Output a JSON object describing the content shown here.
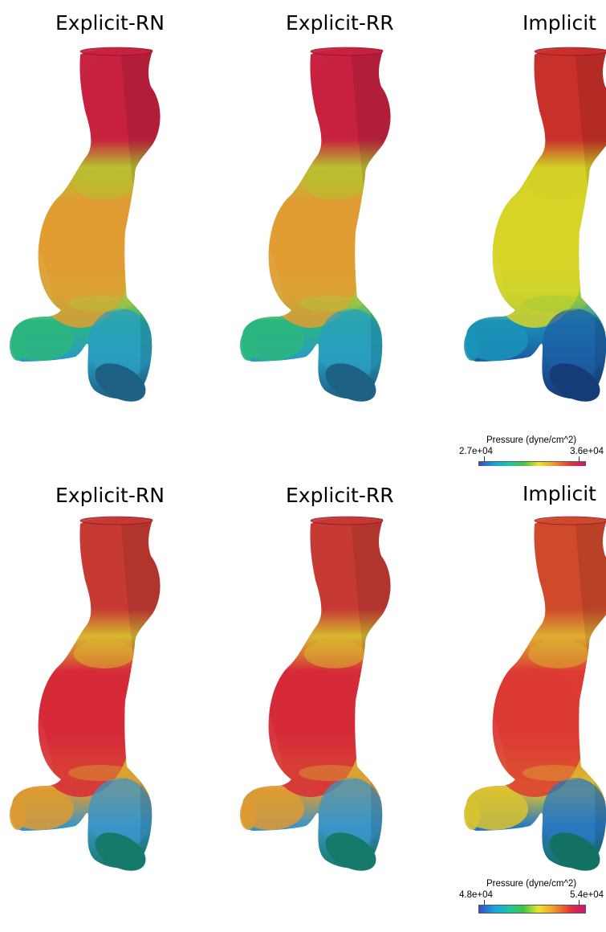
{
  "panels": [
    {
      "titles": [
        "Explicit-RN",
        "Explicit-RR",
        "Implicit"
      ],
      "colorbar": {
        "title": "Pressure (dyne/cm^2)",
        "min": "2.7e+04",
        "max": "3.6e+04"
      },
      "colors": {
        "top": [
          "#c7223f",
          "#c7223f",
          "#c8302a"
        ],
        "neck": [
          "#b8c030",
          "#b8c030",
          "#d2d025"
        ],
        "bulge": [
          "#e09c32",
          "#e09c32",
          "#d7d428"
        ],
        "waist": [
          "#b2c53a",
          "#b2c53a",
          "#9dcc3a"
        ],
        "branch": [
          "#2bb67e",
          "#2bb67e",
          "#1b93b8"
        ],
        "leg": [
          "#2a9dc2",
          "#2a9dc2",
          "#1c5fa4"
        ],
        "cap": [
          "#1d6184",
          "#1d6184",
          "#163c78"
        ]
      }
    },
    {
      "titles": [
        "Explicit-RN",
        "Explicit-RR",
        "Implicit"
      ],
      "colorbar": {
        "title": "Pressure (dyne/cm^2)",
        "min": "4.8e+04",
        "max": "5.4e+04"
      },
      "colors": {
        "top": [
          "#c63a34",
          "#c63a34",
          "#cf4a2c"
        ],
        "neck": [
          "#d8b830",
          "#d8b830",
          "#dcae30"
        ],
        "bulge": [
          "#d62a38",
          "#d62a38",
          "#dc3a32"
        ],
        "waist": [
          "#d9a330",
          "#d9a330",
          "#dea631"
        ],
        "branch": [
          "#dd9a32",
          "#dd9a32",
          "#d9c231"
        ],
        "leg": [
          "#3a96c8",
          "#3a96c8",
          "#2a78c0"
        ],
        "cap": [
          "#167a6a",
          "#167a6a",
          "#147264"
        ]
      }
    }
  ]
}
